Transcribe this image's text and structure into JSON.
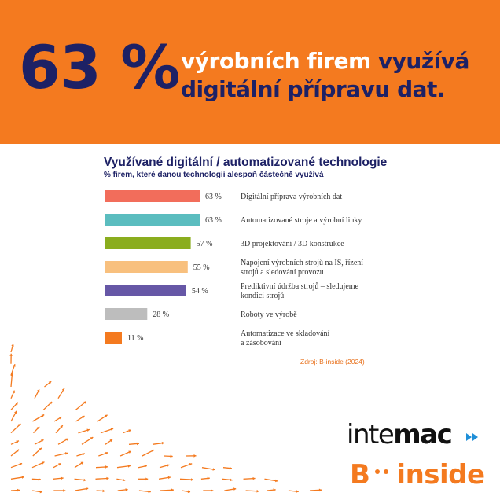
{
  "banner": {
    "big_number": "63 %",
    "line1_white": "výrobních firem ",
    "line1_navy": "využívá",
    "line2_navy": "digitální přípravu dat."
  },
  "chart_data": {
    "type": "bar",
    "orientation": "horizontal",
    "title": "Využívané digitální / automatizované technologie",
    "subtitle": "% firem, které danou technologii alespoň částečně využívá",
    "xlim": [
      0,
      63
    ],
    "grid": false,
    "legend": "none",
    "unit": "%",
    "bars": [
      {
        "category_lines": [
          "Digitální příprava výrobních dat"
        ],
        "value": 63,
        "label": "63 %",
        "color": "#f26d5b"
      },
      {
        "category_lines": [
          "Automatizované stroje a výrobní linky"
        ],
        "value": 63,
        "label": "63 %",
        "color": "#5bbdbf"
      },
      {
        "category_lines": [
          "3D projektování / 3D konstrukce"
        ],
        "value": 57,
        "label": "57 %",
        "color": "#8aad1e"
      },
      {
        "category_lines": [
          "Napojení výrobních strojů na IS, řízení",
          "strojů a sledování provozu"
        ],
        "value": 55,
        "label": "55 %",
        "color": "#f8c07e"
      },
      {
        "category_lines": [
          "Prediktivní údržba strojů – sledujeme",
          "kondici strojů"
        ],
        "value": 54,
        "label": "54 %",
        "color": "#6657a6"
      },
      {
        "category_lines": [
          "Roboty ve výrobě"
        ],
        "value": 28,
        "label": "28 %",
        "color": "#bdbdbd"
      },
      {
        "category_lines": [
          "Automatizace ve skladování",
          "a zásobování"
        ],
        "value": 11,
        "label": "11 %",
        "color": "#f47a1f"
      }
    ]
  },
  "source": "Zdroj: B-inside (2024)",
  "logos": {
    "intemac_light": "inte",
    "intemac_bold": "mac",
    "binside_b": "B",
    "binside_inside": "inside"
  },
  "colors": {
    "orange": "#f47a1f",
    "navy": "#1d2165",
    "white": "#ffffff"
  }
}
